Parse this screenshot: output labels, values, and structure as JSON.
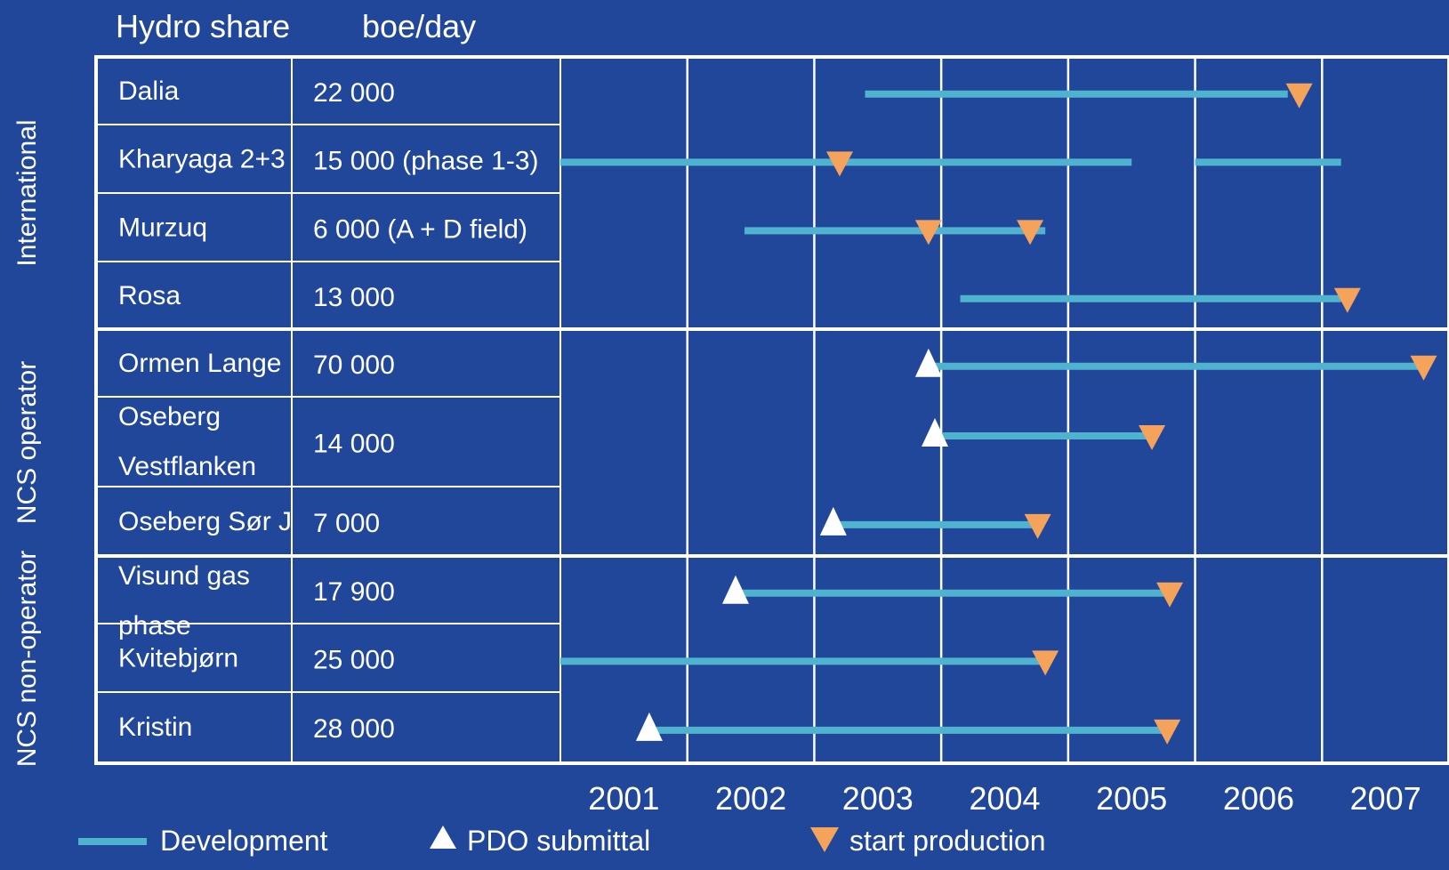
{
  "chart_data": {
    "type": "gantt",
    "title": "",
    "headers": {
      "name": "Hydro share",
      "value": "boe/day"
    },
    "years": [
      "2001",
      "2002",
      "2003",
      "2004",
      "2005",
      "2006",
      "2007"
    ],
    "xlim": [
      2001,
      2008
    ],
    "groups": [
      {
        "label": "International",
        "rows": [
          0,
          3
        ]
      },
      {
        "label": "NCS operator",
        "rows": [
          4,
          6
        ]
      },
      {
        "label": "NCS non-operator",
        "rows": [
          7,
          9
        ]
      }
    ],
    "projects": [
      {
        "name": [
          "Dalia"
        ],
        "value": "22 000",
        "development": [
          [
            2003.4,
            2006.73
          ]
        ],
        "pdo": null,
        "start": 2006.82
      },
      {
        "name": [
          "Kharyaga 2+3"
        ],
        "value": "15 000 (phase 1-3)",
        "development": [
          [
            2001.0,
            2005.5
          ],
          [
            2006.0,
            2007.15
          ]
        ],
        "pdo": null,
        "start": 2003.2
      },
      {
        "name": [
          "Murzuq"
        ],
        "value": "6 000 (A + D field)",
        "development": [
          [
            2002.45,
            2004.82
          ]
        ],
        "pdo": null,
        "start": [
          2003.9,
          2004.7
        ]
      },
      {
        "name": [
          "Rosa"
        ],
        "value": "13 000",
        "development": [
          [
            2004.15,
            2007.15
          ]
        ],
        "pdo": null,
        "start": 2007.2
      },
      {
        "name": [
          "Ormen Lange"
        ],
        "value": "70 000",
        "development": [
          [
            2003.9,
            2007.8
          ]
        ],
        "pdo": 2003.9,
        "start": 2007.8
      },
      {
        "name": [
          "Oseberg",
          "Vestflanken"
        ],
        "value": "14 000",
        "development": [
          [
            2003.95,
            2005.65
          ]
        ],
        "pdo": 2003.95,
        "start": 2005.66
      },
      {
        "name": [
          "Oseberg Sør J"
        ],
        "value": "7 000",
        "development": [
          [
            2003.15,
            2004.8
          ]
        ],
        "pdo": 2003.15,
        "start": 2004.76
      },
      {
        "name": [
          "Visund gas",
          "phase"
        ],
        "value": "17 900",
        "development": [
          [
            2002.38,
            2005.8
          ]
        ],
        "pdo": 2002.38,
        "start": 2005.8
      },
      {
        "name": [
          "Kvitebjørn"
        ],
        "value": "25 000",
        "development": [
          [
            2001.0,
            2004.82
          ]
        ],
        "pdo": null,
        "start": 2004.82
      },
      {
        "name": [
          "Kristin"
        ],
        "value": "28 000",
        "development": [
          [
            2001.7,
            2005.75
          ]
        ],
        "pdo": 2001.7,
        "start": 2005.78
      }
    ],
    "legend": {
      "development": "Development",
      "pdo": "PDO submittal",
      "start": "start production"
    },
    "colors": {
      "background": "#21479b",
      "development": "#4fb3cf",
      "pdo": "#ffffff",
      "start": "#f5a25a",
      "grid": "#ffffff"
    }
  }
}
